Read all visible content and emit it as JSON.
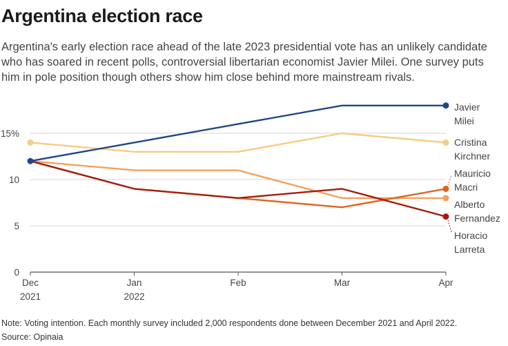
{
  "title": "Argentina election race",
  "subtitle": "Argentina's early election race ahead of the late 2023 presidential vote has an unlikely candidate who has soared in recent polls, controversial libertarian economist Javier Milei. One survey puts him in pole position though others show him close behind more mainstream rivals.",
  "note": "Note: Voting intention. Each monthly survey included 2,000 respondents done between December 2021 and April 2022.",
  "source": "Source: Opinaia",
  "chart_data": {
    "type": "line",
    "x": [
      "Dec 2021",
      "Jan 2022",
      "Feb 2022",
      "Mar 2022",
      "Apr 2022"
    ],
    "x_tick_labels": [
      [
        "Dec",
        "2021"
      ],
      [
        "Jan",
        "2022"
      ],
      [
        "Feb"
      ],
      [
        "Mar"
      ],
      [
        "Apr"
      ]
    ],
    "y_ticks": [
      0,
      5,
      10,
      15
    ],
    "y_tick_labels": [
      "0",
      "5",
      "10",
      "15%"
    ],
    "ylim": [
      0,
      19
    ],
    "grid": true,
    "series": [
      {
        "name": "Javier Milei",
        "label_lines": [
          "Javier",
          "Milei"
        ],
        "color": "#1f4788",
        "values": [
          12,
          14,
          16,
          18,
          18
        ]
      },
      {
        "name": "Cristina Kirchner",
        "label_lines": [
          "Cristina",
          "Kirchner"
        ],
        "color": "#f8cb84",
        "values": [
          14,
          13,
          13,
          15,
          14
        ]
      },
      {
        "name": "Mauricio Macri",
        "label_lines": [
          "Mauricio",
          "Macri"
        ],
        "color": "#e0641e",
        "values": [
          12,
          9,
          8,
          7,
          9
        ]
      },
      {
        "name": "Alberto Fernandez",
        "label_lines": [
          "Alberto",
          "Fernandez"
        ],
        "color": "#f5a15c",
        "values": [
          12,
          11,
          11,
          8,
          8
        ]
      },
      {
        "name": "Horacio Larreta",
        "label_lines": [
          "Horacio",
          "Larreta"
        ],
        "color": "#a51d0c",
        "values": [
          12,
          9,
          8,
          9,
          6
        ]
      }
    ]
  }
}
